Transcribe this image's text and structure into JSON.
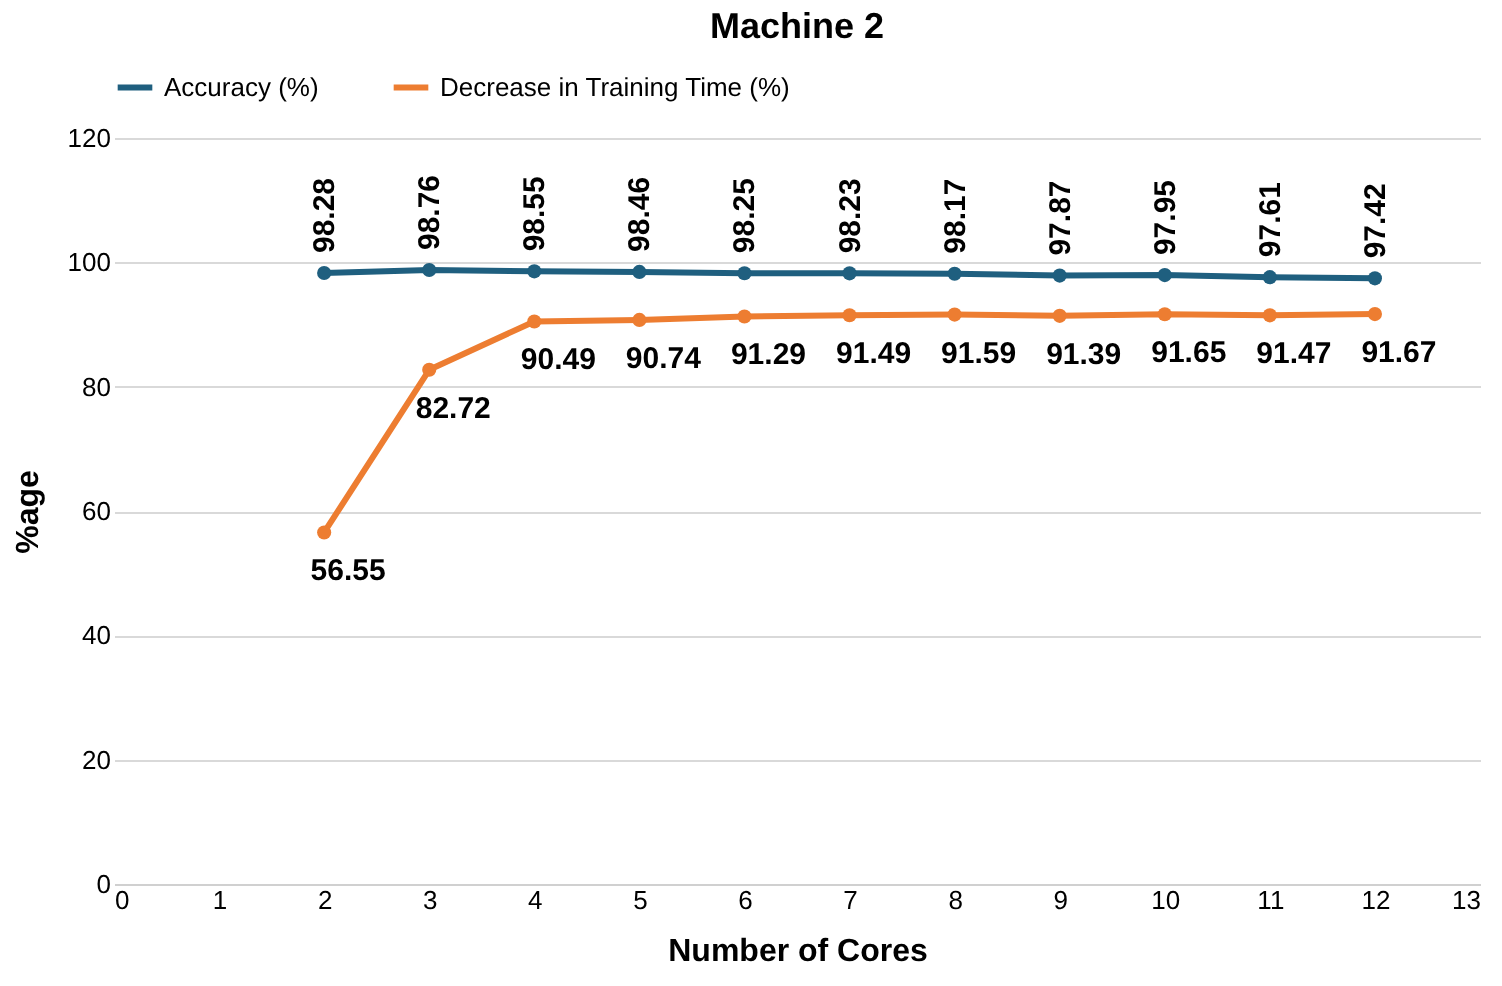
{
  "chart_data": {
    "type": "line",
    "title": "Machine 2",
    "xlabel": "Number of Cores",
    "ylabel": "%age",
    "x": [
      2,
      3,
      4,
      5,
      6,
      7,
      8,
      9,
      10,
      11,
      12
    ],
    "series": [
      {
        "name": "Accuracy (%)",
        "color": "#1f5f7f",
        "values": [
          98.28,
          98.76,
          98.55,
          98.46,
          98.25,
          98.23,
          98.17,
          97.87,
          97.95,
          97.61,
          97.42
        ]
      },
      {
        "name": "Decrease in Training Time (%)",
        "color": "#ed7d31",
        "values": [
          56.55,
          82.72,
          90.49,
          90.74,
          91.29,
          91.49,
          91.59,
          91.39,
          91.65,
          91.47,
          91.67
        ]
      }
    ],
    "xlim": [
      0,
      13
    ],
    "xticks": [
      0,
      1,
      2,
      3,
      4,
      5,
      6,
      7,
      8,
      9,
      10,
      11,
      12,
      13
    ],
    "ylim": [
      0,
      120
    ],
    "yticks": [
      0,
      20,
      40,
      60,
      80,
      100,
      120
    ],
    "grid": "y",
    "legend": "top",
    "marker": "circle",
    "line_style": "solid",
    "data_labels": true
  }
}
